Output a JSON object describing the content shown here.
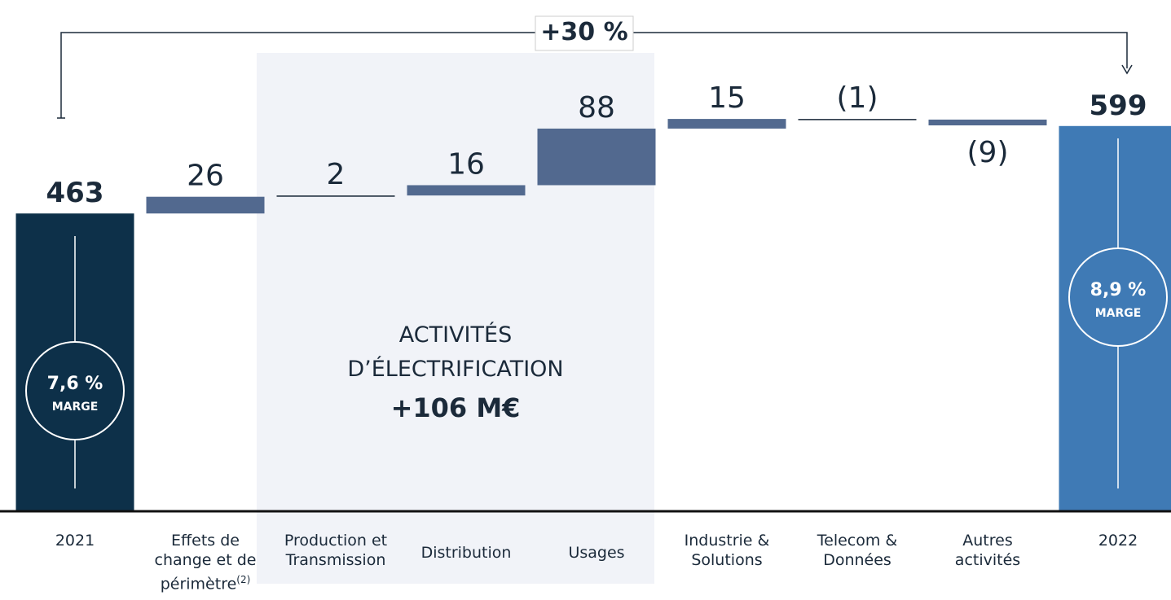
{
  "chart_data": {
    "type": "waterfall",
    "categories": [
      "2021",
      "Effets de change et de périmètre",
      "Production et Transmission",
      "Distribution",
      "Usages",
      "Industrie & Solutions",
      "Telecom & Données",
      "Autres activités",
      "2022"
    ],
    "category_footnote": "(2)",
    "values": [
      463,
      26,
      2,
      16,
      88,
      15,
      -1,
      -9,
      599
    ],
    "value_labels": [
      "463",
      "26",
      "2",
      "16",
      "88",
      "15",
      "(1)",
      "(9)",
      "599"
    ],
    "totals": [
      true,
      false,
      false,
      false,
      false,
      false,
      false,
      false,
      true
    ],
    "colors": {
      "start": "#0d3049",
      "end": "#3f7ab5",
      "change": "#52698f"
    },
    "ylim": [
      0,
      600
    ],
    "growth_label": "+30 %",
    "margins": [
      {
        "value": "7,6 %",
        "label": "MARGE"
      },
      {
        "value": "8,9 %",
        "label": "MARGE"
      }
    ],
    "highlight": {
      "lines": [
        "ACTIVITÉS",
        "D’ÉLECTRIFICATION"
      ],
      "total": "+106 M€"
    }
  }
}
